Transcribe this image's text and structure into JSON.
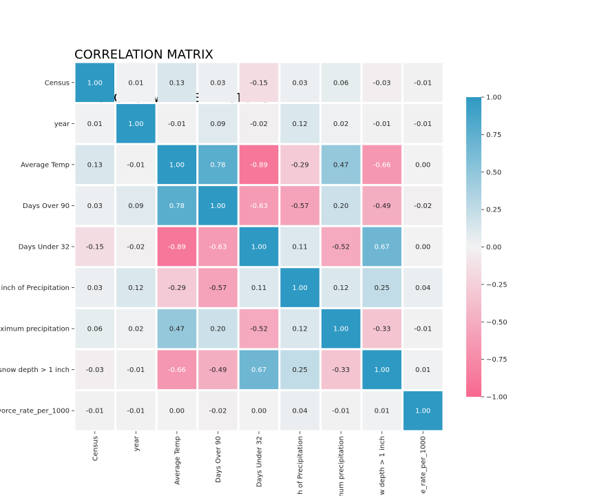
{
  "chart_data": {
    "type": "heatmap",
    "title_lines": [
      "CORRELATION MATRIX",
      "DIVORCE & WEATHER FACTORS"
    ],
    "row_labels": [
      "Census",
      "year",
      "Average Temp",
      "Days Over 90",
      "Days Under 32",
      "inch of Precipitation",
      "ximum precipitation",
      "snow depth > 1 inch",
      "vorce_rate_per_1000"
    ],
    "col_labels": [
      "Census",
      "year",
      "Average Temp",
      "Days Over 90",
      "Days Under 32",
      "h of Precipitation",
      "num precipitation",
      "w depth > 1 inch",
      "e_rate_per_1000"
    ],
    "values": [
      [
        1.0,
        0.01,
        0.13,
        0.03,
        -0.15,
        0.03,
        0.06,
        -0.03,
        -0.01
      ],
      [
        0.01,
        1.0,
        -0.01,
        0.09,
        -0.02,
        0.12,
        0.02,
        -0.01,
        -0.01
      ],
      [
        0.13,
        -0.01,
        1.0,
        0.78,
        -0.89,
        -0.29,
        0.47,
        -0.66,
        -0.0
      ],
      [
        0.03,
        0.09,
        0.78,
        1.0,
        -0.63,
        -0.57,
        0.2,
        -0.49,
        -0.02
      ],
      [
        -0.15,
        -0.02,
        -0.89,
        -0.63,
        1.0,
        0.11,
        -0.52,
        0.67,
        0.0
      ],
      [
        0.03,
        0.12,
        -0.29,
        -0.57,
        0.11,
        1.0,
        0.12,
        0.25,
        0.04
      ],
      [
        0.06,
        0.02,
        0.47,
        0.2,
        -0.52,
        0.12,
        1.0,
        -0.33,
        -0.01
      ],
      [
        -0.03,
        -0.01,
        -0.66,
        -0.49,
        0.67,
        0.25,
        -0.33,
        1.0,
        0.01
      ],
      [
        -0.01,
        -0.01,
        -0.0,
        -0.02,
        0.0,
        0.04,
        -0.01,
        0.01,
        1.0
      ]
    ],
    "colorbar": {
      "range": [
        -1.0,
        1.0
      ],
      "ticks": [
        "1.00",
        "0.75",
        "0.50",
        "0.25",
        "0.00",
        "−0.25",
        "−0.50",
        "−0.75",
        "−1.00"
      ],
      "tick_values": [
        1.0,
        0.75,
        0.5,
        0.25,
        0.0,
        -0.25,
        -0.5,
        -0.75,
        -1.0
      ]
    },
    "colors": {
      "negative": "#f7688f",
      "neutral": "#f2f2f2",
      "positive": "#2e99c3",
      "cell_border": "#ffffff"
    },
    "annotation_format": "2 decimals",
    "grid": false
  }
}
